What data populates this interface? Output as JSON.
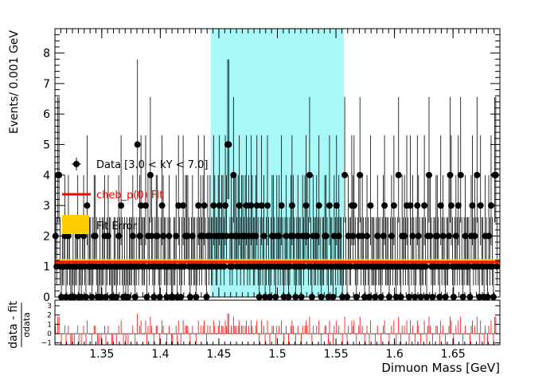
{
  "chart_data": {
    "type": "scatter",
    "main_panel": {
      "ylabel": "Events/ 0.001 GeV",
      "xlim": [
        1.31,
        1.69
      ],
      "ylim": [
        0,
        8.8
      ],
      "yticks": [
        0,
        1,
        2,
        3,
        4,
        5,
        6,
        7,
        8
      ],
      "signal_region": {
        "x_from": 1.443,
        "x_to": 1.557,
        "color": "#a8f8f8"
      },
      "fit": {
        "name": "cheb_p(0) Fit",
        "color": "#ff0000",
        "value": 1.15,
        "error_low": 1.05,
        "error_high": 1.25,
        "error_color": "#ffcc00"
      },
      "legend": {
        "placement": "top-left",
        "entries": [
          {
            "label": "Data [3.0 < kY < 7.0]",
            "kind": "marker",
            "color": "#000000"
          },
          {
            "label": "cheb_p(0) Fit",
            "kind": "line",
            "color": "#ff0000"
          },
          {
            "label": "Fit Error",
            "kind": "box",
            "color": "#ffcc00"
          }
        ]
      },
      "x_start": 1.3105,
      "x_step": 0.001,
      "values": [
        2,
        1,
        4,
        4,
        1,
        0,
        1,
        1,
        2,
        0,
        1,
        2,
        1,
        0,
        0,
        1,
        0,
        1,
        1,
        2,
        0,
        1,
        0,
        1,
        2,
        1,
        0,
        3,
        1,
        1,
        1,
        0,
        1,
        2,
        2,
        1,
        0,
        0,
        1,
        0,
        1,
        1,
        2,
        0,
        1,
        2,
        1,
        1,
        0,
        0,
        1,
        1,
        0,
        1,
        2,
        1,
        3,
        1,
        0,
        1,
        0,
        1,
        0,
        1,
        1,
        1,
        2,
        1,
        0,
        1,
        5,
        1,
        2,
        3,
        1,
        1,
        1,
        3,
        0,
        2,
        1,
        4,
        2,
        1,
        0,
        1,
        2,
        2,
        1,
        0,
        1,
        3,
        2,
        1,
        1,
        0,
        1,
        2,
        1,
        0,
        0,
        1,
        1,
        2,
        0,
        3,
        1,
        0,
        1,
        3,
        1,
        2,
        2,
        2,
        1,
        0,
        1,
        2,
        1,
        1,
        0,
        1,
        3,
        1,
        2,
        1,
        2,
        3,
        1,
        0,
        2,
        1,
        2,
        1,
        1,
        3,
        2,
        1,
        1,
        2,
        3,
        1,
        2,
        2,
        1,
        3,
        2,
        5,
        5,
        1,
        2,
        1,
        4,
        2,
        2,
        1,
        2,
        3,
        1,
        2,
        2,
        1,
        2,
        3,
        1,
        2,
        1,
        3,
        2,
        1,
        1,
        2,
        3,
        1,
        0,
        1,
        3,
        1,
        2,
        0,
        1,
        3,
        1,
        0,
        1,
        2,
        2,
        1,
        0,
        2,
        1,
        2,
        1,
        3,
        1,
        0,
        1,
        2,
        1,
        0,
        1,
        2,
        3,
        2,
        1,
        0,
        1,
        2,
        1,
        1,
        0,
        2,
        1,
        2,
        3,
        2,
        1,
        4,
        1,
        0,
        2,
        1,
        1,
        2,
        1,
        3,
        1,
        0,
        1,
        1,
        2,
        2,
        1,
        0,
        3,
        1,
        1,
        0,
        2,
        1,
        3,
        1,
        2,
        1,
        1,
        0,
        1,
        4,
        1,
        0,
        2,
        1,
        1,
        3,
        2,
        3,
        1,
        0,
        1,
        2,
        4,
        1,
        2,
        1,
        0,
        1,
        2,
        1,
        0,
        3,
        1,
        1,
        1,
        0,
        1,
        2,
        1,
        1,
        0,
        1,
        2,
        3,
        1,
        1,
        1,
        0,
        1,
        2,
        1,
        3,
        1,
        0,
        1,
        4,
        1,
        0,
        2,
        1,
        2,
        1,
        3,
        1,
        0,
        3,
        1,
        2,
        1,
        0,
        1,
        3,
        2,
        1,
        0,
        1,
        1,
        3,
        1,
        0,
        2,
        4,
        2,
        1,
        0,
        1,
        1,
        2,
        2,
        1,
        0,
        3,
        1,
        2,
        1,
        0,
        1,
        1,
        2,
        4,
        3,
        1,
        0,
        1,
        2,
        1,
        3,
        1,
        4,
        1,
        0,
        1,
        2,
        1,
        1,
        1,
        0,
        2,
        3,
        1,
        2,
        1,
        4,
        1,
        0,
        3,
        1,
        1,
        0,
        2,
        1,
        0,
        2,
        1,
        3,
        1,
        0,
        4,
        4,
        1
      ]
    },
    "residual_panel": {
      "ylabel": "data - fit",
      "ylabel_sub": "σdata",
      "xlabel": "Dimuon Mass [GeV]",
      "xticks": [
        1.35,
        1.4,
        1.45,
        1.5,
        1.55,
        1.6,
        1.65
      ],
      "ylim": [
        -1.2,
        3.6
      ],
      "yticks": [
        -1,
        0,
        1,
        2,
        3
      ],
      "ytick_labels": [
        "−1",
        "0",
        "1",
        "2",
        "3"
      ],
      "bar_color": "#ff0000"
    }
  }
}
